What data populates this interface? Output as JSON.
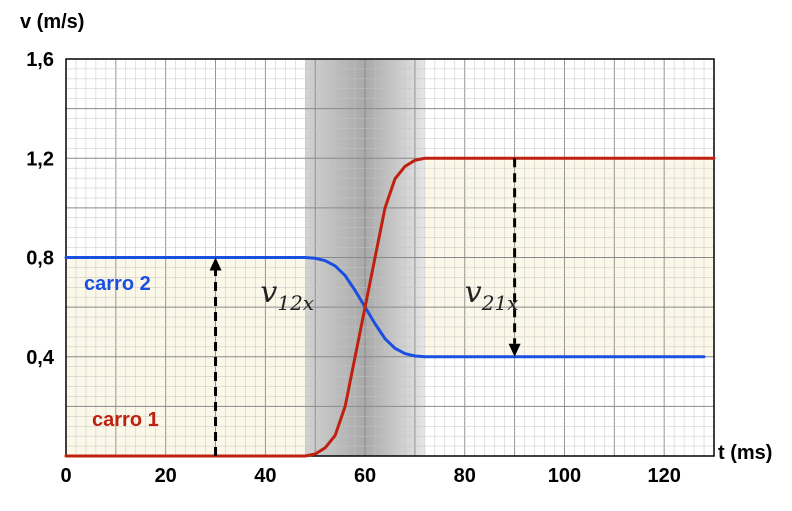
{
  "chart_data": {
    "type": "line",
    "xlabel": "t (ms)",
    "ylabel": "v (m/s)",
    "xlim": [
      0,
      130
    ],
    "ylim": [
      0,
      1.6
    ],
    "x_ticks": [
      "0",
      "20",
      "40",
      "60",
      "80",
      "100",
      "120"
    ],
    "y_ticks": [
      "0,4",
      "0,8",
      "1,2",
      "1,6"
    ],
    "grid": true,
    "collision_interval_ms": [
      48,
      72
    ],
    "series": [
      {
        "name": "carro 2",
        "color": "#1a4fe0",
        "x": [
          0,
          48,
          50,
          52,
          54,
          56,
          58,
          60,
          62,
          64,
          66,
          68,
          70,
          72,
          128
        ],
        "y": [
          0.8,
          0.8,
          0.797,
          0.787,
          0.766,
          0.727,
          0.667,
          0.6,
          0.533,
          0.473,
          0.434,
          0.413,
          0.403,
          0.4,
          0.4
        ]
      },
      {
        "name": "carro 1",
        "color": "#c0200f",
        "x": [
          0,
          48,
          50,
          52,
          54,
          56,
          58,
          60,
          62,
          64,
          66,
          68,
          70,
          72,
          130
        ],
        "y": [
          0.0,
          0.0,
          0.008,
          0.033,
          0.083,
          0.2,
          0.4,
          0.6,
          0.8,
          1.0,
          1.117,
          1.167,
          1.192,
          1.2,
          1.2
        ]
      }
    ],
    "annotations": [
      {
        "text": "v",
        "sub": "12x",
        "arrow_x": 30,
        "arrow_from": 0,
        "arrow_to": 0.8,
        "label_x": 39,
        "label_y": 0.62
      },
      {
        "text": "v",
        "sub": "21x",
        "arrow_x": 90,
        "arrow_from": 1.2,
        "arrow_to": 0.4,
        "label_x": 80,
        "label_y": 0.62
      }
    ]
  }
}
